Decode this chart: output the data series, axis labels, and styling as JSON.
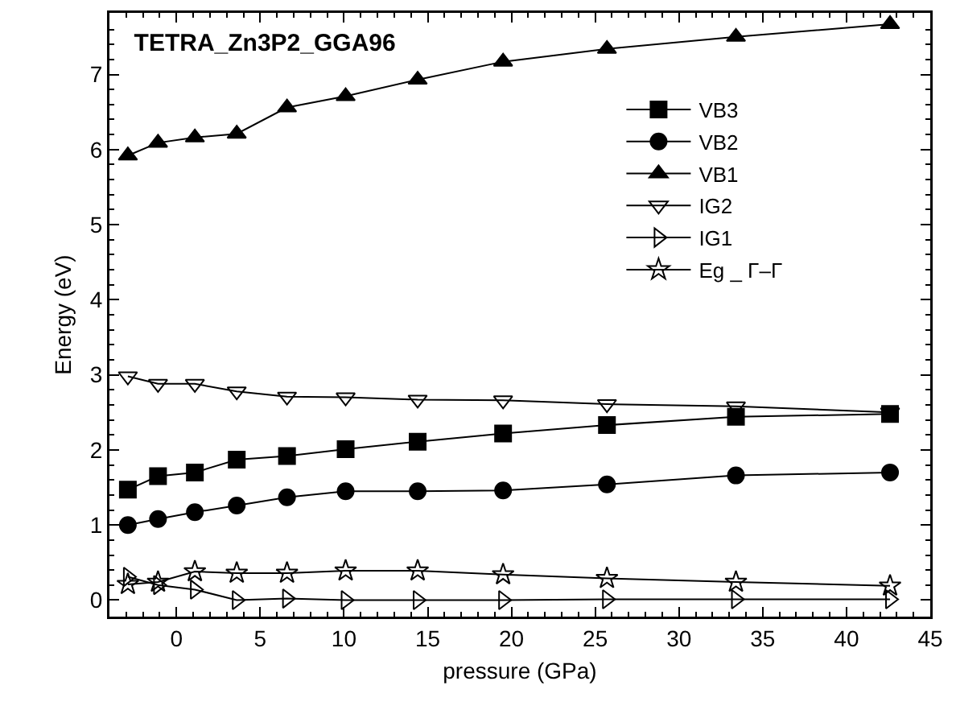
{
  "chart_data": {
    "type": "line",
    "title": "TETRA_Zn3P2_GGA96",
    "xlabel": "pressure (GPa)",
    "ylabel": "Energy (eV)",
    "x": [
      -2.9,
      -1.1,
      1.1,
      3.6,
      6.6,
      10.1,
      14.4,
      19.5,
      25.7,
      33.4,
      42.6
    ],
    "series": [
      {
        "name": "VB3",
        "color": "#000000",
        "marker": "square",
        "values": [
          1.47,
          1.65,
          1.7,
          1.87,
          1.92,
          2.01,
          2.11,
          2.22,
          2.33,
          2.44,
          2.48
        ]
      },
      {
        "name": "VB2",
        "color": "#000000",
        "marker": "circle",
        "values": [
          1.0,
          1.08,
          1.17,
          1.26,
          1.37,
          1.45,
          1.45,
          1.46,
          1.54,
          1.66,
          1.7
        ]
      },
      {
        "name": "VB1",
        "color": "#000000",
        "marker": "triangle",
        "values": [
          5.92,
          6.09,
          6.16,
          6.21,
          6.56,
          6.71,
          6.93,
          7.17,
          7.34,
          7.5,
          7.67
        ]
      },
      {
        "name": "IG2",
        "color": "#000000",
        "marker": "triangle",
        "values": [
          2.98,
          2.88,
          2.88,
          2.78,
          2.71,
          2.7,
          2.67,
          2.66,
          2.61,
          2.58,
          2.5
        ]
      },
      {
        "name": "IG1",
        "color": "#000000",
        "marker": "triangle",
        "values": [
          0.31,
          0.2,
          0.14,
          0.0,
          0.02,
          0.0,
          0.0,
          0.0,
          0.01,
          0.01,
          0.01
        ]
      },
      {
        "name": "Eg _ Γ–Γ",
        "color": "#000000",
        "marker": "star",
        "values": [
          0.21,
          0.24,
          0.38,
          0.36,
          0.36,
          0.39,
          0.39,
          0.34,
          0.29,
          0.24,
          0.19
        ]
      }
    ],
    "xlim": [
      -4,
      45
    ],
    "xticks": [
      0,
      5,
      10,
      15,
      20,
      25,
      30,
      35,
      40,
      45
    ],
    "ylim": [
      -0.22,
      7.82
    ],
    "yticks": [
      0,
      1,
      2,
      3,
      4,
      5,
      6,
      7
    ],
    "grid": false,
    "legend": "top right",
    "line_style": "solid"
  }
}
